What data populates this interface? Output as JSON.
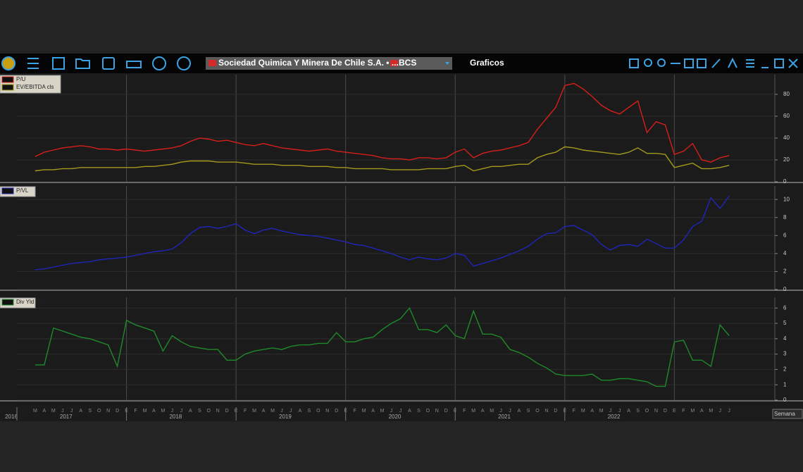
{
  "toolbar": {
    "security": "Sociedad Quimica Y Minera De Chile S.A. • ...",
    "exchange": "BCS",
    "view": "Graficos",
    "period": "Semana"
  },
  "time_axis": {
    "xlim": [
      "2016-01",
      "2022-12"
    ],
    "month_labels": [
      "E",
      "F",
      "M",
      "A",
      "M",
      "J",
      "J",
      "A",
      "S",
      "O",
      "N",
      "D"
    ],
    "year_labels": [
      "2016",
      "2017",
      "2018",
      "2019",
      "2020",
      "2021",
      "2022"
    ],
    "x": [
      "2016-03",
      "2016-04",
      "2016-05",
      "2016-06",
      "2016-07",
      "2016-08",
      "2016-09",
      "2016-10",
      "2016-11",
      "2016-12",
      "2017-01",
      "2017-02",
      "2017-03",
      "2017-04",
      "2017-05",
      "2017-06",
      "2017-07",
      "2017-08",
      "2017-09",
      "2017-10",
      "2017-11",
      "2017-12",
      "2018-01",
      "2018-02",
      "2018-03",
      "2018-04",
      "2018-05",
      "2018-06",
      "2018-07",
      "2018-08",
      "2018-09",
      "2018-10",
      "2018-11",
      "2018-12",
      "2019-01",
      "2019-02",
      "2019-03",
      "2019-04",
      "2019-05",
      "2019-06",
      "2019-07",
      "2019-08",
      "2019-09",
      "2019-10",
      "2019-11",
      "2019-12",
      "2020-01",
      "2020-02",
      "2020-03",
      "2020-04",
      "2020-05",
      "2020-06",
      "2020-07",
      "2020-08",
      "2020-09",
      "2020-10",
      "2020-11",
      "2020-12",
      "2021-01",
      "2021-02",
      "2021-03",
      "2021-04",
      "2021-05",
      "2021-06",
      "2021-07",
      "2021-08",
      "2021-09",
      "2021-10",
      "2021-11",
      "2021-12",
      "2022-01",
      "2022-02",
      "2022-03",
      "2022-04",
      "2022-05",
      "2022-06",
      "2022-07"
    ]
  },
  "chart_data": [
    {
      "type": "line",
      "ylim": [
        0,
        98
      ],
      "yticks": [
        0,
        20,
        40,
        60,
        80
      ],
      "series": [
        {
          "name": "P/U",
          "color": "#d61f1a",
          "values": [
            23,
            27,
            29,
            31,
            32,
            33,
            32,
            30,
            30,
            29,
            30,
            29,
            28,
            29,
            30,
            31,
            33,
            37,
            40,
            39,
            37,
            38,
            36,
            34,
            33,
            35,
            33,
            31,
            30,
            29,
            28,
            29,
            30,
            28,
            27,
            26,
            25,
            24,
            22,
            21,
            21,
            20,
            22,
            22,
            21,
            22,
            27,
            30,
            22,
            26,
            28,
            29,
            31,
            33,
            36,
            48,
            58,
            68,
            88,
            90,
            85,
            78,
            70,
            65,
            62,
            68,
            74,
            45,
            55,
            52,
            25,
            28,
            35,
            20,
            18,
            22,
            24
          ]
        },
        {
          "name": "EV/EBITDA cls",
          "color": "#a39a1c",
          "values": [
            10,
            11,
            11,
            12,
            12,
            13,
            13,
            13,
            13,
            13,
            13,
            13,
            14,
            14,
            15,
            16,
            18,
            19,
            19,
            19,
            18,
            18,
            18,
            17,
            16,
            16,
            16,
            15,
            15,
            15,
            14,
            14,
            14,
            13,
            13,
            12,
            12,
            12,
            12,
            11,
            11,
            11,
            11,
            12,
            12,
            12,
            14,
            15,
            10,
            12,
            14,
            14,
            15,
            16,
            16,
            22,
            25,
            27,
            32,
            31,
            29,
            28,
            27,
            26,
            25,
            27,
            31,
            26,
            26,
            25,
            13,
            15,
            17,
            12,
            12,
            13,
            15
          ]
        }
      ]
    },
    {
      "type": "line",
      "ylim": [
        0,
        11.5
      ],
      "yticks": [
        0,
        2,
        4,
        6,
        8,
        10
      ],
      "series": [
        {
          "name": "P/VL",
          "color": "#1f25b8",
          "values": [
            2.2,
            2.3,
            2.5,
            2.7,
            2.9,
            3.0,
            3.1,
            3.3,
            3.4,
            3.5,
            3.6,
            3.8,
            4.0,
            4.2,
            4.3,
            4.5,
            5.2,
            6.2,
            6.9,
            7.0,
            6.8,
            7.0,
            7.3,
            6.6,
            6.2,
            6.6,
            6.8,
            6.5,
            6.3,
            6.1,
            6.0,
            5.9,
            5.7,
            5.5,
            5.3,
            5.0,
            4.9,
            4.6,
            4.3,
            4.0,
            3.6,
            3.3,
            3.6,
            3.4,
            3.3,
            3.5,
            4.0,
            3.8,
            2.6,
            2.9,
            3.2,
            3.5,
            3.9,
            4.3,
            4.8,
            5.6,
            6.2,
            6.3,
            7.0,
            7.1,
            6.6,
            6.1,
            5.0,
            4.4,
            4.9,
            5.0,
            4.8,
            5.6,
            5.1,
            4.6,
            4.6,
            5.5,
            7.0,
            7.6,
            10.2,
            9.0,
            10.4
          ]
        }
      ]
    },
    {
      "type": "line",
      "ylim": [
        0,
        6.7
      ],
      "yticks": [
        0,
        1,
        2,
        3,
        4,
        5,
        6
      ],
      "series": [
        {
          "name": "Div Yld (fin)",
          "color": "#1f8a2a",
          "values": [
            2.3,
            2.3,
            4.7,
            4.5,
            4.3,
            4.1,
            4.0,
            3.8,
            3.6,
            2.2,
            5.2,
            4.9,
            4.7,
            4.5,
            3.2,
            4.2,
            3.8,
            3.5,
            3.4,
            3.3,
            3.3,
            2.6,
            2.6,
            3.0,
            3.2,
            3.3,
            3.4,
            3.3,
            3.5,
            3.6,
            3.6,
            3.7,
            3.7,
            4.4,
            3.8,
            3.8,
            4.0,
            4.1,
            4.6,
            5.0,
            5.3,
            6.0,
            4.6,
            4.6,
            4.4,
            4.9,
            4.2,
            4.0,
            5.8,
            4.3,
            4.3,
            4.1,
            3.3,
            3.1,
            2.8,
            2.4,
            2.1,
            1.7,
            1.6,
            1.6,
            1.6,
            1.7,
            1.3,
            1.3,
            1.4,
            1.4,
            1.3,
            1.2,
            0.9,
            0.9,
            3.8,
            3.9,
            2.6,
            2.6,
            2.2,
            4.9,
            4.2
          ]
        }
      ]
    }
  ]
}
